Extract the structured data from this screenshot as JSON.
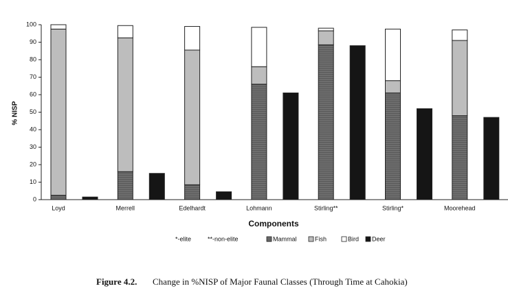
{
  "chart_data": {
    "type": "bar",
    "stacked": true,
    "ylabel": "% NISP",
    "xlabel": "Components",
    "categories": [
      "Loyd",
      "Merrell",
      "Edelhardt",
      "Lohmann",
      "Stirling**",
      "Stirling*",
      "Moorehead"
    ],
    "series": [
      {
        "name": "Mammal",
        "color": "#6e6e6e",
        "stack_group": 0,
        "values": [
          2.5,
          16,
          8.5,
          66,
          88.5,
          61,
          48
        ]
      },
      {
        "name": "Fish",
        "color": "#bdbdbd",
        "stack_group": 0,
        "values": [
          95,
          76.5,
          77,
          10,
          8,
          7,
          43
        ]
      },
      {
        "name": "Bird",
        "color": "#ffffff",
        "stack_group": 0,
        "values": [
          2.5,
          7,
          13.5,
          22.5,
          1.5,
          29.5,
          6
        ]
      },
      {
        "name": "Deer",
        "color": "#151515",
        "stack_group": 1,
        "values": [
          1.5,
          15,
          4.5,
          61,
          88,
          52,
          47
        ]
      }
    ],
    "notes": [
      "*-elite",
      "**-non-elite"
    ],
    "ylim": [
      0,
      100
    ],
    "yticks": [
      0,
      10,
      20,
      30,
      40,
      50,
      60,
      70,
      80,
      90,
      100
    ],
    "caption_label": "Figure 4.2.",
    "caption_text": "Change in %NISP of Major Faunal Classes (Through Time at Cahokia)"
  }
}
